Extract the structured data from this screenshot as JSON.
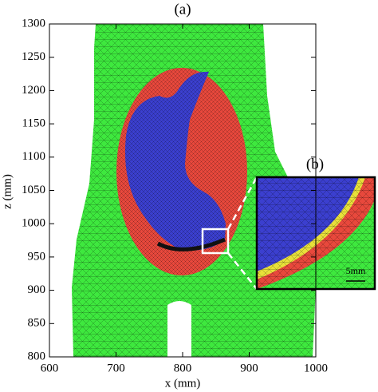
{
  "chart_data": {
    "type": "mesh",
    "title": "(a)",
    "x_label": "x (mm)",
    "y_label": "z (mm)",
    "xlim": [
      600,
      1000
    ],
    "xticks": [
      600,
      700,
      800,
      900,
      1000
    ],
    "ylim": [
      800,
      1300
    ],
    "yticks": [
      800,
      850,
      900,
      950,
      1000,
      1050,
      1100,
      1150,
      1200,
      1250,
      1300
    ],
    "inset_label": "(b)",
    "scale_label": "5mm"
  }
}
